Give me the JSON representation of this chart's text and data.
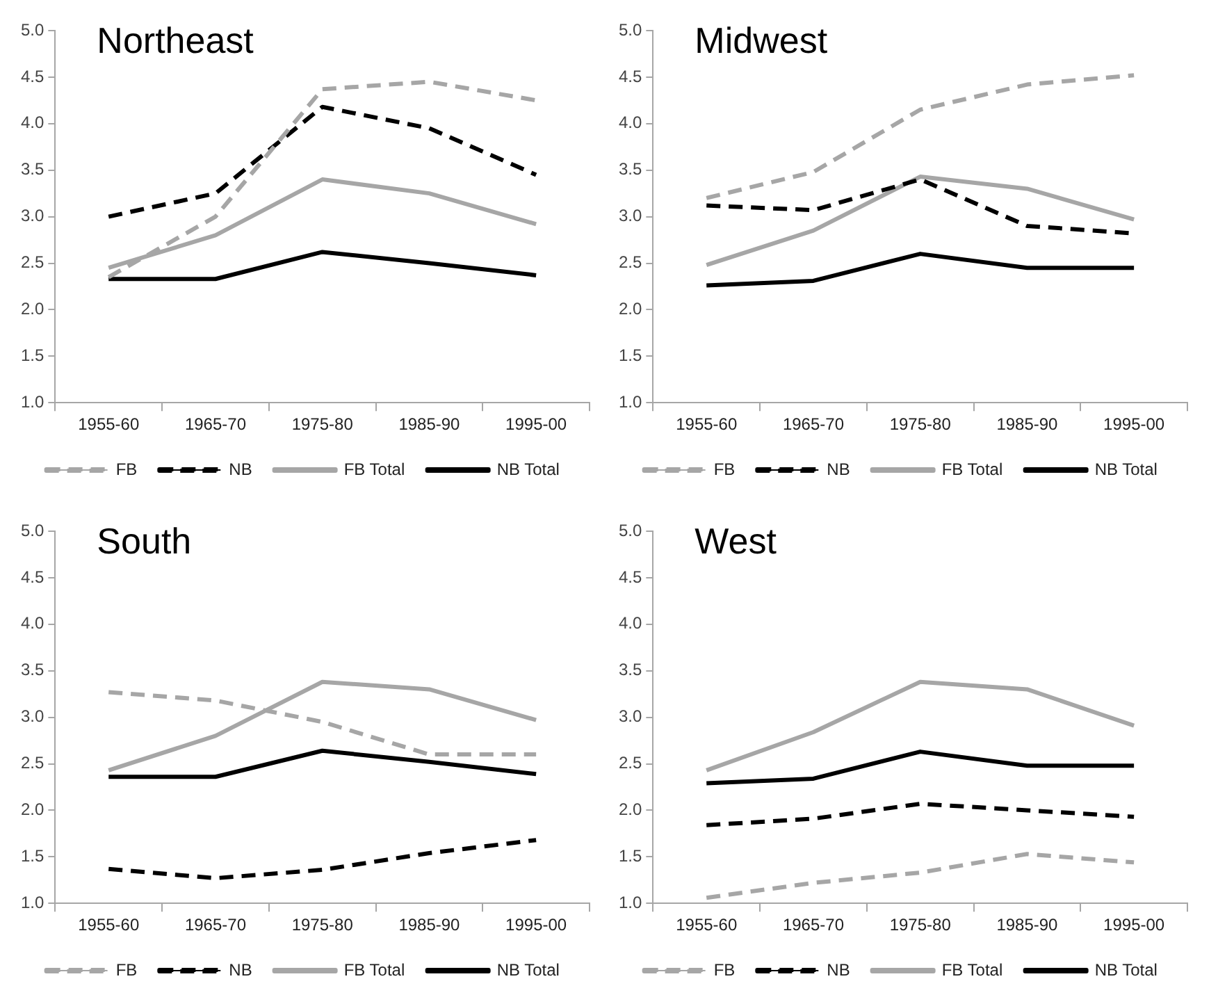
{
  "chart_data": [
    {
      "type": "line",
      "title": "Northeast",
      "categories": [
        "1955-60",
        "1965-70",
        "1975-80",
        "1985-90",
        "1995-00"
      ],
      "ylim": [
        1.0,
        5.0
      ],
      "yticks": [
        {
          "value": 1,
          "label": "1.0"
        },
        {
          "value": 1.5,
          "label": "1.5"
        },
        {
          "value": 2,
          "label": "2.0"
        },
        {
          "value": 2.5,
          "label": "2.5"
        },
        {
          "value": 3,
          "label": "3.0"
        },
        {
          "value": 3.5,
          "label": "3.5"
        },
        {
          "value": 4,
          "label": "4.0"
        },
        {
          "value": 4.5,
          "label": "4.5"
        },
        {
          "value": 5,
          "label": "5.0"
        }
      ],
      "grid": false,
      "legend": "bottom",
      "marker": "none",
      "series": [
        {
          "name": "FB",
          "color": "#a6a6a6",
          "line_style": "dashed",
          "values": [
            2.35,
            3.0,
            4.37,
            4.45,
            4.25
          ]
        },
        {
          "name": "NB",
          "color": "#000000",
          "line_style": "dashed",
          "values": [
            3.0,
            3.25,
            4.18,
            3.95,
            3.45
          ]
        },
        {
          "name": "FB Total",
          "color": "#a6a6a6",
          "line_style": "solid",
          "values": [
            2.45,
            2.8,
            3.4,
            3.25,
            2.92
          ]
        },
        {
          "name": "NB Total",
          "color": "#000000",
          "line_style": "solid",
          "values": [
            2.33,
            2.33,
            2.62,
            2.5,
            2.37
          ]
        }
      ]
    },
    {
      "type": "line",
      "title": "Midwest",
      "categories": [
        "1955-60",
        "1965-70",
        "1975-80",
        "1985-90",
        "1995-00"
      ],
      "ylim": [
        1.0,
        5.0
      ],
      "yticks": [
        {
          "value": 1,
          "label": "1.0"
        },
        {
          "value": 1.5,
          "label": "1.5"
        },
        {
          "value": 2,
          "label": "2.0"
        },
        {
          "value": 2.5,
          "label": "2.5"
        },
        {
          "value": 3,
          "label": "3.0"
        },
        {
          "value": 3.5,
          "label": "3.5"
        },
        {
          "value": 4,
          "label": "4.0"
        },
        {
          "value": 4.5,
          "label": "4.5"
        },
        {
          "value": 5,
          "label": "5.0"
        }
      ],
      "grid": false,
      "legend": "bottom",
      "marker": "none",
      "series": [
        {
          "name": "FB",
          "color": "#a6a6a6",
          "line_style": "dashed",
          "values": [
            3.2,
            3.48,
            4.15,
            4.42,
            4.52
          ]
        },
        {
          "name": "NB",
          "color": "#000000",
          "line_style": "dashed",
          "values": [
            3.12,
            3.07,
            3.4,
            2.9,
            2.82
          ]
        },
        {
          "name": "FB Total",
          "color": "#a6a6a6",
          "line_style": "solid",
          "values": [
            2.48,
            2.85,
            3.43,
            3.3,
            2.97
          ]
        },
        {
          "name": "NB Total",
          "color": "#000000",
          "line_style": "solid",
          "values": [
            2.26,
            2.31,
            2.6,
            2.45,
            2.45
          ]
        }
      ]
    },
    {
      "type": "line",
      "title": "South",
      "categories": [
        "1955-60",
        "1965-70",
        "1975-80",
        "1985-90",
        "1995-00"
      ],
      "ylim": [
        1.0,
        5.0
      ],
      "yticks": [
        {
          "value": 1,
          "label": "1.0"
        },
        {
          "value": 1.5,
          "label": "1.5"
        },
        {
          "value": 2,
          "label": "2.0"
        },
        {
          "value": 2.5,
          "label": "2.5"
        },
        {
          "value": 3,
          "label": "3.0"
        },
        {
          "value": 3.5,
          "label": "3.5"
        },
        {
          "value": 4,
          "label": "4.0"
        },
        {
          "value": 4.5,
          "label": "4.5"
        },
        {
          "value": 5,
          "label": "5.0"
        }
      ],
      "grid": false,
      "legend": "bottom",
      "marker": "none",
      "series": [
        {
          "name": "FB",
          "color": "#a6a6a6",
          "line_style": "dashed",
          "values": [
            3.27,
            3.18,
            2.95,
            2.6,
            2.6
          ]
        },
        {
          "name": "NB",
          "color": "#000000",
          "line_style": "dashed",
          "values": [
            1.37,
            1.27,
            1.36,
            1.54,
            1.68
          ]
        },
        {
          "name": "FB Total",
          "color": "#a6a6a6",
          "line_style": "solid",
          "values": [
            2.43,
            2.8,
            3.38,
            3.3,
            2.97
          ]
        },
        {
          "name": "NB Total",
          "color": "#000000",
          "line_style": "solid",
          "values": [
            2.36,
            2.36,
            2.64,
            2.52,
            2.39
          ]
        }
      ]
    },
    {
      "type": "line",
      "title": "West",
      "categories": [
        "1955-60",
        "1965-70",
        "1975-80",
        "1985-90",
        "1995-00"
      ],
      "ylim": [
        1.0,
        5.0
      ],
      "yticks": [
        {
          "value": 1,
          "label": "1.0"
        },
        {
          "value": 1.5,
          "label": "1.5"
        },
        {
          "value": 2,
          "label": "2.0"
        },
        {
          "value": 2.5,
          "label": "2.5"
        },
        {
          "value": 3,
          "label": "3.0"
        },
        {
          "value": 3.5,
          "label": "3.5"
        },
        {
          "value": 4,
          "label": "4.0"
        },
        {
          "value": 4.5,
          "label": "4.5"
        },
        {
          "value": 5,
          "label": "5.0"
        }
      ],
      "grid": false,
      "legend": "bottom",
      "marker": "none",
      "series": [
        {
          "name": "FB",
          "color": "#a6a6a6",
          "line_style": "dashed",
          "values": [
            1.06,
            1.22,
            1.33,
            1.53,
            1.44
          ]
        },
        {
          "name": "NB",
          "color": "#000000",
          "line_style": "dashed",
          "values": [
            1.84,
            1.91,
            2.07,
            2.0,
            1.93
          ]
        },
        {
          "name": "FB Total",
          "color": "#a6a6a6",
          "line_style": "solid",
          "values": [
            2.43,
            2.84,
            3.38,
            3.3,
            2.91
          ]
        },
        {
          "name": "NB Total",
          "color": "#000000",
          "line_style": "solid",
          "values": [
            2.29,
            2.34,
            2.63,
            2.48,
            2.48
          ]
        }
      ]
    }
  ]
}
